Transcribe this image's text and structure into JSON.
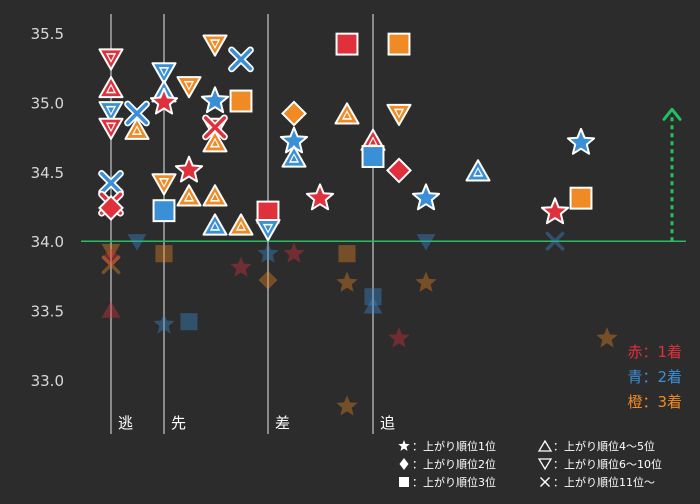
{
  "chart_data": {
    "type": "scatter",
    "title": "",
    "xlabel": "",
    "ylabel": "",
    "ylim": [
      32.6,
      35.75
    ],
    "yticks": [
      "33.0",
      "33.5",
      "34.0",
      "34.5",
      "35.0",
      "35.5"
    ],
    "reference_line": 34.0,
    "reference_arrow_from": 34.0,
    "reference_arrow_to": 34.95,
    "x_domain": [
      0,
      700
    ],
    "styles": [
      {
        "label": "逃",
        "x": 111
      },
      {
        "label": "先",
        "x": 164
      },
      {
        "label": "差",
        "x": 268
      },
      {
        "label": "追",
        "x": 373
      }
    ],
    "colors": {
      "赤": "#e0303c",
      "青": "#3a8fd6",
      "橙": "#f08a24",
      "reference": "#22c060",
      "background": "#2c2c2c"
    },
    "color_legend": [
      {
        "text": "赤：1着",
        "color_key": "赤"
      },
      {
        "text": "青：2着",
        "color_key": "青"
      },
      {
        "text": "橙：3着",
        "color_key": "橙"
      }
    ],
    "shape_legend": [
      {
        "shape": "star",
        "text": "：上がり順位1位"
      },
      {
        "shape": "diamond",
        "text": "：上がり順位2位"
      },
      {
        "shape": "square",
        "text": "：上がり順位3位"
      },
      {
        "shape": "triangle-up",
        "text": "：上がり順位4〜5位"
      },
      {
        "shape": "triangle-down",
        "text": "：上がり順位6〜10位"
      },
      {
        "shape": "cross",
        "text": "：上がり順位11位〜"
      }
    ],
    "points": [
      {
        "x": 111,
        "y": 35.32,
        "color": "赤",
        "shape": "triangle-down",
        "faded": false
      },
      {
        "x": 111,
        "y": 35.1,
        "color": "赤",
        "shape": "triangle-up",
        "faded": false
      },
      {
        "x": 111,
        "y": 34.94,
        "color": "青",
        "shape": "triangle-down",
        "faded": false
      },
      {
        "x": 111,
        "y": 34.82,
        "color": "赤",
        "shape": "triangle-down",
        "faded": false
      },
      {
        "x": 111,
        "y": 34.42,
        "color": "青",
        "shape": "cross",
        "faded": false
      },
      {
        "x": 111,
        "y": 34.27,
        "color": "赤",
        "shape": "cross",
        "faded": false
      },
      {
        "x": 111,
        "y": 34.24,
        "color": "赤",
        "shape": "diamond",
        "faded": false
      },
      {
        "x": 137,
        "y": 34.92,
        "color": "青",
        "shape": "cross",
        "faded": false
      },
      {
        "x": 137,
        "y": 34.8,
        "color": "橙",
        "shape": "triangle-up",
        "faded": false
      },
      {
        "x": 164,
        "y": 35.22,
        "color": "青",
        "shape": "triangle-down",
        "faded": false
      },
      {
        "x": 164,
        "y": 35.07,
        "color": "青",
        "shape": "triangle-up",
        "faded": false
      },
      {
        "x": 164,
        "y": 35.0,
        "color": "赤",
        "shape": "star",
        "faded": false
      },
      {
        "x": 164,
        "y": 34.42,
        "color": "橙",
        "shape": "triangle-down",
        "faded": false
      },
      {
        "x": 164,
        "y": 34.22,
        "color": "青",
        "shape": "square",
        "faded": false
      },
      {
        "x": 189,
        "y": 35.12,
        "color": "橙",
        "shape": "triangle-down",
        "faded": false
      },
      {
        "x": 189,
        "y": 34.51,
        "color": "赤",
        "shape": "star",
        "faded": false
      },
      {
        "x": 189,
        "y": 34.32,
        "color": "橙",
        "shape": "triangle-up",
        "faded": false
      },
      {
        "x": 215,
        "y": 35.42,
        "color": "橙",
        "shape": "triangle-down",
        "faded": false
      },
      {
        "x": 215,
        "y": 35.01,
        "color": "青",
        "shape": "star",
        "faded": false
      },
      {
        "x": 215,
        "y": 34.82,
        "color": "赤",
        "shape": "triangle-down",
        "faded": false
      },
      {
        "x": 215,
        "y": 34.82,
        "color": "赤",
        "shape": "cross",
        "faded": false
      },
      {
        "x": 215,
        "y": 34.71,
        "color": "橙",
        "shape": "triangle-up",
        "faded": false
      },
      {
        "x": 215,
        "y": 34.32,
        "color": "橙",
        "shape": "triangle-up",
        "faded": false
      },
      {
        "x": 215,
        "y": 34.11,
        "color": "青",
        "shape": "triangle-up",
        "faded": false
      },
      {
        "x": 241,
        "y": 35.31,
        "color": "青",
        "shape": "cross",
        "faded": false
      },
      {
        "x": 241,
        "y": 35.01,
        "color": "橙",
        "shape": "square",
        "faded": false
      },
      {
        "x": 241,
        "y": 34.11,
        "color": "橙",
        "shape": "triangle-up",
        "faded": false
      },
      {
        "x": 268,
        "y": 34.21,
        "color": "赤",
        "shape": "square",
        "faded": false
      },
      {
        "x": 268,
        "y": 34.09,
        "color": "青",
        "shape": "triangle-down",
        "faded": false
      },
      {
        "x": 294,
        "y": 34.92,
        "color": "橙",
        "shape": "diamond",
        "faded": false
      },
      {
        "x": 294,
        "y": 34.72,
        "color": "青",
        "shape": "star",
        "faded": false
      },
      {
        "x": 294,
        "y": 34.6,
        "color": "青",
        "shape": "triangle-up",
        "faded": false
      },
      {
        "x": 320,
        "y": 34.31,
        "color": "赤",
        "shape": "star",
        "faded": false
      },
      {
        "x": 347,
        "y": 35.42,
        "color": "赤",
        "shape": "square",
        "faded": false
      },
      {
        "x": 347,
        "y": 34.91,
        "color": "橙",
        "shape": "triangle-up",
        "faded": false
      },
      {
        "x": 373,
        "y": 34.72,
        "color": "赤",
        "shape": "triangle-up",
        "faded": false
      },
      {
        "x": 373,
        "y": 34.61,
        "color": "青",
        "shape": "square",
        "faded": false
      },
      {
        "x": 399,
        "y": 35.42,
        "color": "橙",
        "shape": "square",
        "faded": false
      },
      {
        "x": 399,
        "y": 34.92,
        "color": "橙",
        "shape": "triangle-down",
        "faded": false
      },
      {
        "x": 399,
        "y": 34.51,
        "color": "赤",
        "shape": "diamond",
        "faded": false
      },
      {
        "x": 426,
        "y": 34.31,
        "color": "青",
        "shape": "star",
        "faded": false
      },
      {
        "x": 478,
        "y": 34.5,
        "color": "青",
        "shape": "triangle-up",
        "faded": false
      },
      {
        "x": 555,
        "y": 34.21,
        "color": "赤",
        "shape": "star",
        "faded": false
      },
      {
        "x": 581,
        "y": 34.71,
        "color": "青",
        "shape": "star",
        "faded": false
      },
      {
        "x": 581,
        "y": 34.31,
        "color": "橙",
        "shape": "square",
        "faded": false
      },
      {
        "x": 111,
        "y": 33.93,
        "color": "橙",
        "shape": "triangle-down",
        "faded": true
      },
      {
        "x": 111,
        "y": 33.88,
        "color": "赤",
        "shape": "diamond",
        "faded": true
      },
      {
        "x": 111,
        "y": 33.83,
        "color": "橙",
        "shape": "cross",
        "faded": true
      },
      {
        "x": 111,
        "y": 33.5,
        "color": "赤",
        "shape": "triangle-up",
        "faded": true
      },
      {
        "x": 137,
        "y": 34.0,
        "color": "青",
        "shape": "triangle-down",
        "faded": true
      },
      {
        "x": 164,
        "y": 33.91,
        "color": "橙",
        "shape": "square",
        "faded": true
      },
      {
        "x": 164,
        "y": 33.4,
        "color": "青",
        "shape": "star",
        "faded": true
      },
      {
        "x": 189,
        "y": 33.42,
        "color": "青",
        "shape": "square",
        "faded": true
      },
      {
        "x": 241,
        "y": 33.81,
        "color": "赤",
        "shape": "star",
        "faded": true
      },
      {
        "x": 268,
        "y": 33.91,
        "color": "青",
        "shape": "star",
        "faded": true
      },
      {
        "x": 268,
        "y": 33.72,
        "color": "橙",
        "shape": "diamond",
        "faded": true
      },
      {
        "x": 294,
        "y": 33.91,
        "color": "赤",
        "shape": "star",
        "faded": true
      },
      {
        "x": 347,
        "y": 33.91,
        "color": "橙",
        "shape": "square",
        "faded": true
      },
      {
        "x": 347,
        "y": 33.7,
        "color": "橙",
        "shape": "star",
        "faded": true
      },
      {
        "x": 347,
        "y": 32.81,
        "color": "橙",
        "shape": "star",
        "faded": true
      },
      {
        "x": 373,
        "y": 33.6,
        "color": "青",
        "shape": "square",
        "faded": true
      },
      {
        "x": 373,
        "y": 33.53,
        "color": "青",
        "shape": "triangle-up",
        "faded": true
      },
      {
        "x": 399,
        "y": 33.3,
        "color": "赤",
        "shape": "star",
        "faded": true
      },
      {
        "x": 426,
        "y": 34.0,
        "color": "青",
        "shape": "triangle-down",
        "faded": true
      },
      {
        "x": 426,
        "y": 33.7,
        "color": "橙",
        "shape": "star",
        "faded": true
      },
      {
        "x": 555,
        "y": 34.0,
        "color": "青",
        "shape": "cross",
        "faded": true
      },
      {
        "x": 607,
        "y": 33.3,
        "color": "橙",
        "shape": "star",
        "faded": true
      }
    ]
  }
}
